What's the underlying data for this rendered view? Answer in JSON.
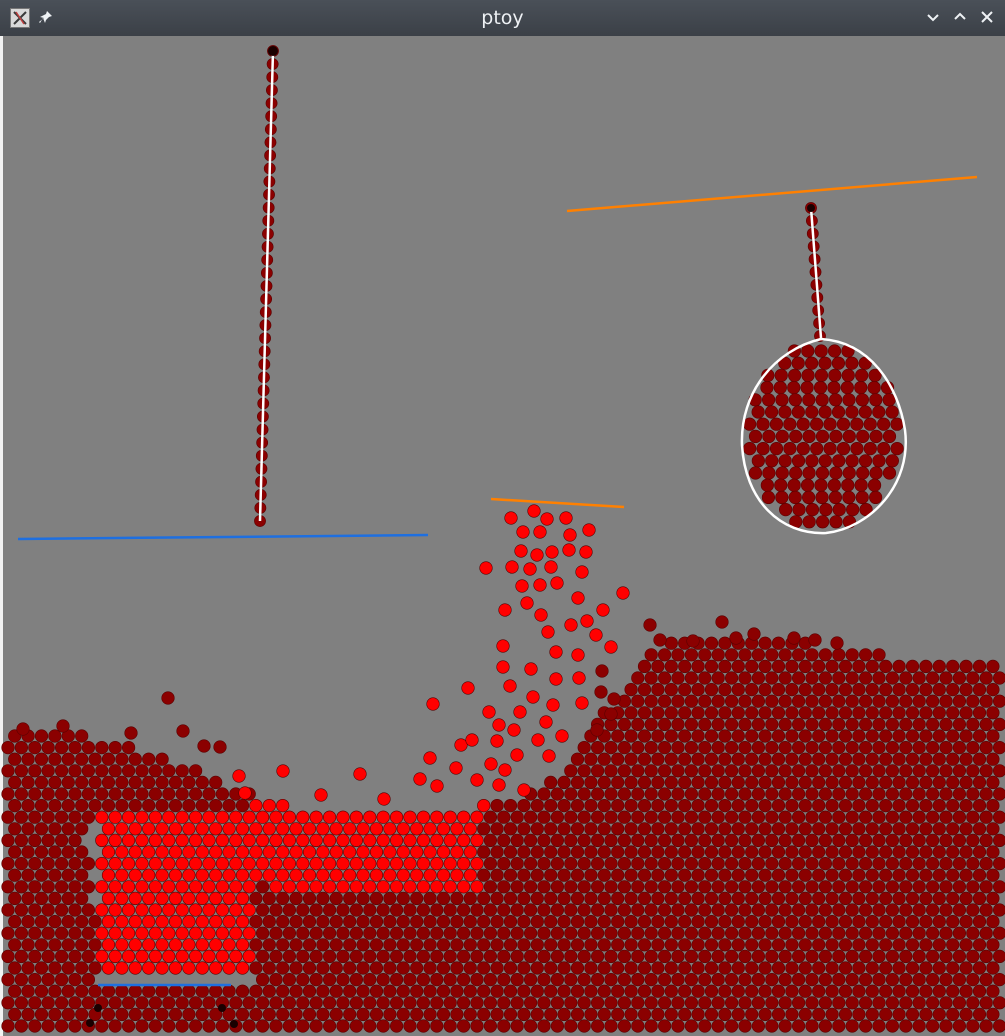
{
  "window": {
    "title": "ptoy",
    "icons": [
      "app-icon",
      "pin-icon",
      "minimize-icon",
      "maximize-icon",
      "close-icon"
    ]
  },
  "scene": {
    "background_color": "#808080",
    "particle_colors": {
      "dark": "#8b0000",
      "bright": "#ff0000",
      "outline": "#5a0000"
    },
    "bar_colors": {
      "blue": "#1e6fe0",
      "orange": "#ff8000"
    },
    "rope_color": "#ffffff"
  }
}
